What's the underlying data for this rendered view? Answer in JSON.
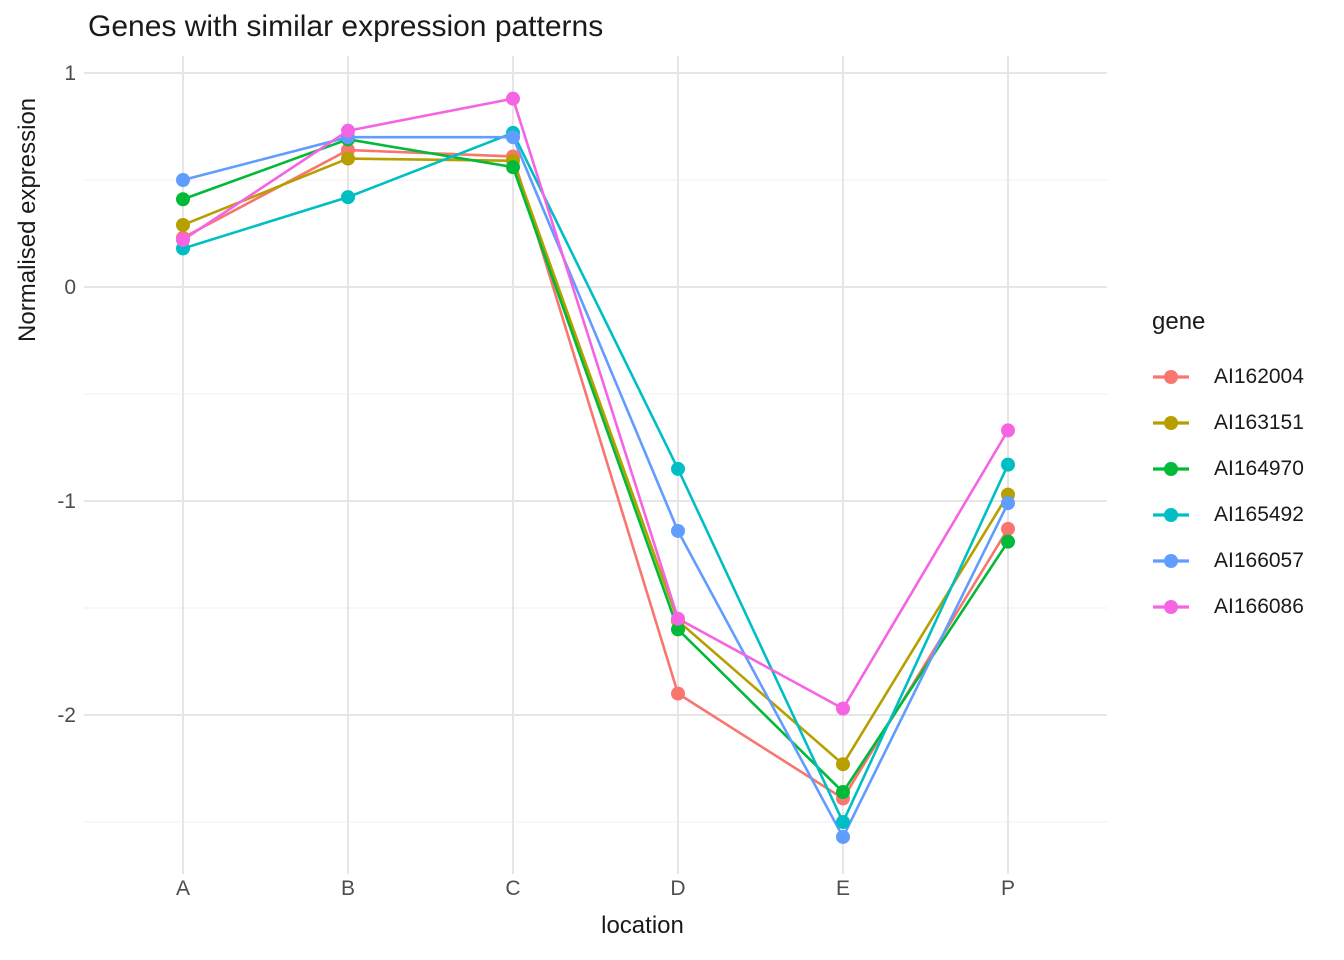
{
  "title": "Genes with similar expression patterns",
  "chart_data": {
    "type": "line",
    "title": "Genes with similar expression patterns",
    "xlabel": "location",
    "ylabel": "Normalised expression",
    "legend_title": "gene",
    "legend_position": "right",
    "grid": true,
    "categories": [
      "A",
      "B",
      "C",
      "D",
      "E",
      "P"
    ],
    "series": [
      {
        "name": "AI162004",
        "color": "#F8766D",
        "values": [
          0.23,
          0.64,
          0.61,
          -1.9,
          -2.39,
          -1.13
        ]
      },
      {
        "name": "AI163151",
        "color": "#B79F00",
        "values": [
          0.29,
          0.6,
          0.59,
          -1.56,
          -2.23,
          -0.97
        ]
      },
      {
        "name": "AI164970",
        "color": "#00BA38",
        "values": [
          0.41,
          0.69,
          0.56,
          -1.6,
          -2.36,
          -1.19
        ]
      },
      {
        "name": "AI165492",
        "color": "#00BFC4",
        "values": [
          0.18,
          0.42,
          0.72,
          -0.85,
          -2.5,
          -0.83
        ]
      },
      {
        "name": "AI166057",
        "color": "#619CFF",
        "values": [
          0.5,
          0.7,
          0.7,
          -1.14,
          -2.57,
          -1.01
        ]
      },
      {
        "name": "AI166086",
        "color": "#F564E3",
        "values": [
          0.22,
          0.73,
          0.88,
          -1.55,
          -1.97,
          -0.67
        ]
      }
    ],
    "y_major_ticks": [
      1,
      0,
      -1,
      -2
    ],
    "y_minor_ticks": [
      0.5,
      -0.5,
      -1.5,
      -2.5
    ],
    "ylim": [
      -2.73,
      1.08
    ]
  },
  "colors": {
    "background": "#FFFFFF",
    "grid_major": "#E6E6E6",
    "grid_minor": "#F2F2F2",
    "tick_label": "#4D4D4D",
    "text": "#1A1A1A"
  }
}
